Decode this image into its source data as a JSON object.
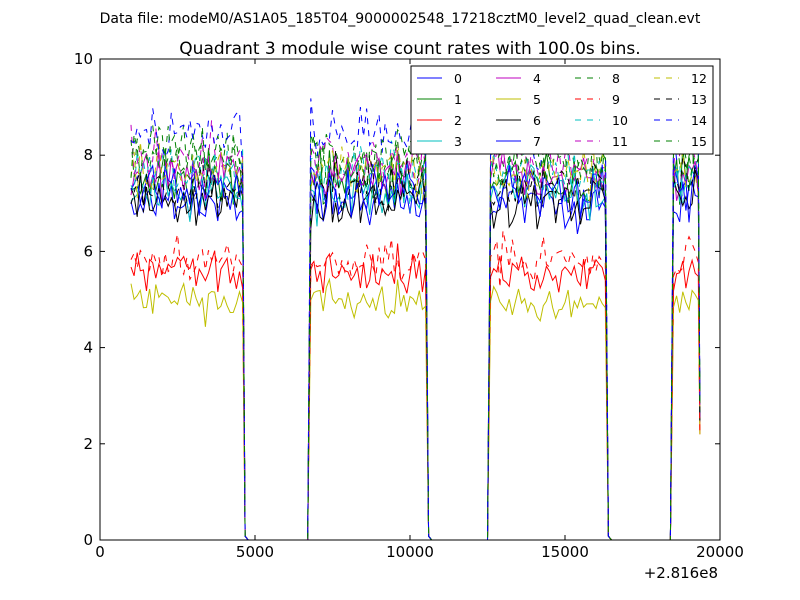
{
  "figure": {
    "suptitle": "Data file: modeM0/AS1A05_185T04_9000002548_17218cztM0_level2_quad_clean.evt"
  },
  "chart_data": {
    "type": "line",
    "title": "Quadrant 3 module wise count rates with 100.0s bins.",
    "xlabel": "",
    "ylabel": "",
    "x_offset_label": "+2.816e8",
    "xlim": [
      0,
      20000
    ],
    "ylim": [
      0,
      10
    ],
    "x_ticks": [
      0,
      5000,
      10000,
      15000,
      20000
    ],
    "x_tick_labels": [
      "0",
      "5000",
      "10000",
      "15000",
      "20000"
    ],
    "y_ticks": [
      0,
      2,
      4,
      6,
      8,
      10
    ],
    "y_tick_labels": [
      "0",
      "2",
      "4",
      "6",
      "8",
      "10"
    ],
    "grid": false,
    "legend_placement": "top-right",
    "legend_columns": 4,
    "segments": [
      {
        "x_start": 1000,
        "x_end": 4600,
        "drop_x": 4680
      },
      {
        "x_start": 6800,
        "x_end": 10500,
        "drop_x": 10600
      },
      {
        "x_start": 12600,
        "x_end": 16300,
        "drop_x": 16400
      },
      {
        "x_start": 18500,
        "x_end": 19300,
        "drop_x": 19350
      }
    ],
    "gap_value": 0,
    "series": [
      {
        "name": "0",
        "color": "#0000ff",
        "dash": "solid",
        "level": 7.0
      },
      {
        "name": "1",
        "color": "#008000",
        "dash": "solid",
        "level": 7.5
      },
      {
        "name": "2",
        "color": "#ff0000",
        "dash": "solid",
        "level": 5.6
      },
      {
        "name": "3",
        "color": "#00bfbf",
        "dash": "solid",
        "level": 7.2
      },
      {
        "name": "4",
        "color": "#bf00bf",
        "dash": "solid",
        "level": 7.6
      },
      {
        "name": "5",
        "color": "#bfbf00",
        "dash": "solid",
        "level": 5.0
      },
      {
        "name": "6",
        "color": "#000000",
        "dash": "solid",
        "level": 7.1
      },
      {
        "name": "7",
        "color": "#0000ff",
        "dash": "solid",
        "level": 7.3
      },
      {
        "name": "8",
        "color": "#008000",
        "dash": "dashed",
        "level": 8.0
      },
      {
        "name": "9",
        "color": "#ff0000",
        "dash": "dashed",
        "level": 5.8
      },
      {
        "name": "10",
        "color": "#00bfbf",
        "dash": "dashed",
        "level": 7.6
      },
      {
        "name": "11",
        "color": "#bf00bf",
        "dash": "dashed",
        "level": 7.9
      },
      {
        "name": "12",
        "color": "#bfbf00",
        "dash": "dashed",
        "level": 7.7
      },
      {
        "name": "13",
        "color": "#000000",
        "dash": "dashed",
        "level": 7.4
      },
      {
        "name": "14",
        "color": "#0000ff",
        "dash": "dashed",
        "level": 8.4
      },
      {
        "name": "15",
        "color": "#008000",
        "dash": "dashed",
        "level": 7.9
      }
    ]
  }
}
